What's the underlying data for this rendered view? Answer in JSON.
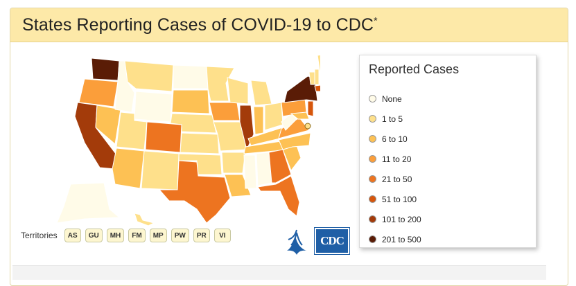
{
  "header": {
    "title": "States Reporting Cases of COVID-19 to CDC",
    "title_mark": "*"
  },
  "legend": {
    "title": "Reported Cases",
    "items": [
      {
        "label": "None",
        "color": "#fffbe8"
      },
      {
        "label": "1 to 5",
        "color": "#fee08b"
      },
      {
        "label": "6 to 10",
        "color": "#fdc154"
      },
      {
        "label": "11 to 20",
        "color": "#fb9e3a"
      },
      {
        "label": "21 to 50",
        "color": "#ed7420"
      },
      {
        "label": "51 to 100",
        "color": "#d6560c"
      },
      {
        "label": "101 to 200",
        "color": "#a33b0a"
      },
      {
        "label": "201 to 500",
        "color": "#5a1c06"
      }
    ]
  },
  "territories": {
    "label": "Territories",
    "items": [
      "AS",
      "GU",
      "MH",
      "FM",
      "MP",
      "PW",
      "PR",
      "VI"
    ]
  },
  "logos": {
    "cdc_text": "CDC"
  }
}
